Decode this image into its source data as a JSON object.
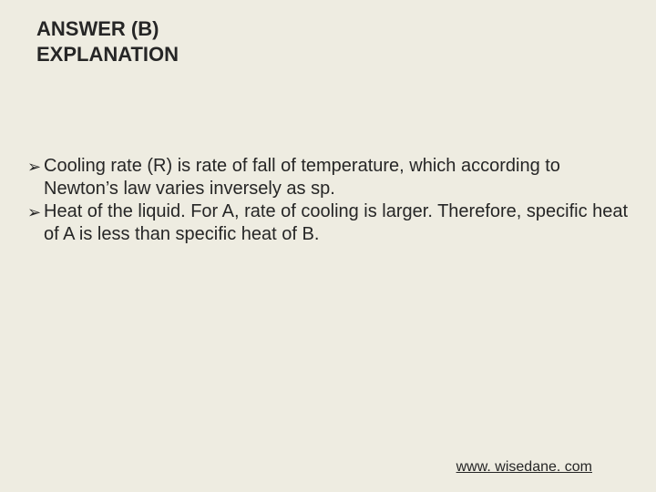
{
  "background_color": "#eeece1",
  "text_color": "#262626",
  "title": {
    "line1": "ANSWER (B)",
    "line2": "EXPLANATION",
    "font_size_pt": 22,
    "font_weight": "bold"
  },
  "bullets": {
    "marker": "➢",
    "font_size_pt": 20,
    "items": [
      "Cooling rate (R) is rate of fall of temperature, which according to Newton’s law varies inversely as sp.",
      "Heat of the liquid. For A, rate of cooling is larger. Therefore, specific heat of A is less than specific heat of B."
    ]
  },
  "footer": {
    "text": "www. wisedane. com",
    "font_size_pt": 16,
    "underline": true
  }
}
